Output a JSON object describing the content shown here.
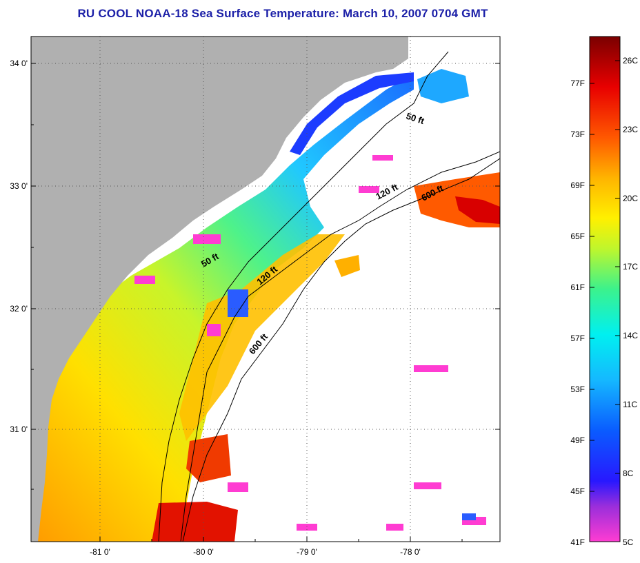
{
  "title": "RU COOL  NOAA-18  Sea Surface Temperature:  March 10, 2007 0704 GMT",
  "map": {
    "lat_labels": [
      {
        "lat": 34,
        "label": "34 0'"
      },
      {
        "lat": 33,
        "label": "33 0'"
      },
      {
        "lat": 32,
        "label": "32 0'"
      },
      {
        "lat": 31,
        "label": "31 0'"
      }
    ],
    "lon_labels": [
      {
        "lon": -81,
        "label": "-81 0'"
      },
      {
        "lon": -80,
        "label": "-80 0'"
      },
      {
        "lon": -79,
        "label": "-79 0'"
      },
      {
        "lon": -78,
        "label": "-78 0'"
      }
    ],
    "contour_labels": [
      "50 ft",
      "120 ft",
      "600 ft",
      "50 ft",
      "120 ft",
      "600 ft"
    ],
    "colors": {
      "land": "#b0b0b0",
      "no_data": "#ffffff",
      "grid": "#555555"
    }
  },
  "legend": {
    "fahrenheit": [
      "77F",
      "73F",
      "69F",
      "65F",
      "61F",
      "57F",
      "53F",
      "49F",
      "45F",
      "41F"
    ],
    "celsius": [
      "26C",
      "23C",
      "20C",
      "17C",
      "14C",
      "11C",
      "8C",
      "5C"
    ],
    "stops": [
      "#ff3cd2",
      "#9a2edb",
      "#2818ff",
      "#0a5cff",
      "#15b8ff",
      "#00f0f0",
      "#3cf28c",
      "#bff62c",
      "#fff000",
      "#ffb400",
      "#ff5800",
      "#e80000",
      "#7a0000"
    ]
  }
}
